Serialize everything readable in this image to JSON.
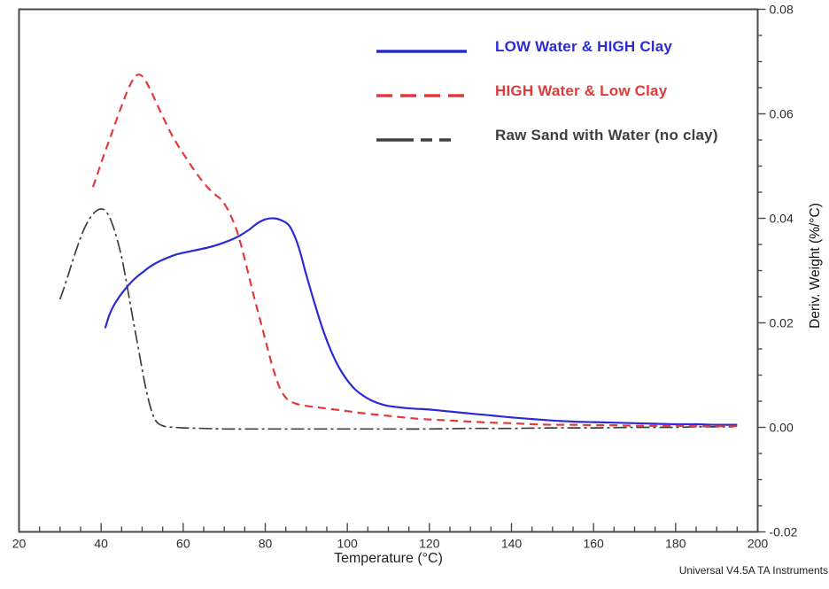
{
  "credit": "Universal V4.5A TA Instruments",
  "colors": {
    "background": "#ffffff",
    "axis": "#4a4a4a",
    "tick_label": "#2d2d2d",
    "series_blue": "#2b2bd6",
    "series_red": "#e23a3a",
    "series_black": "#3f3f3f"
  },
  "chart_data": {
    "type": "line",
    "title": "",
    "xlabel": "Temperature (°C)",
    "ylabel": "Deriv. Weight (%/°C)",
    "xlim": [
      20,
      200
    ],
    "ylim": [
      -0.02,
      0.08
    ],
    "grid": false,
    "legend_position": "top-center",
    "x_ticks": {
      "values": [
        20,
        40,
        60,
        80,
        100,
        120,
        140,
        160,
        180,
        200
      ],
      "minor_step": 5
    },
    "y_ticks": {
      "values": [
        -0.02,
        0,
        0.02,
        0.04,
        0.06,
        0.08
      ],
      "labels": [
        "-0.02",
        "0.00",
        "0.02",
        "0.04",
        "0.06",
        "0.08"
      ],
      "minor_step": 0.005
    },
    "series": [
      {
        "name": "LOW Water & HIGH Clay",
        "color": "#2b2bd6",
        "style": "solid",
        "points": [
          [
            41,
            0.019
          ],
          [
            42,
            0.0215
          ],
          [
            43,
            0.0232
          ],
          [
            44,
            0.0245
          ],
          [
            45,
            0.0256
          ],
          [
            46,
            0.0266
          ],
          [
            47,
            0.0275
          ],
          [
            48,
            0.0283
          ],
          [
            49,
            0.029
          ],
          [
            50,
            0.0296
          ],
          [
            52,
            0.0308
          ],
          [
            54,
            0.0317
          ],
          [
            56,
            0.0324
          ],
          [
            58,
            0.033
          ],
          [
            60,
            0.0334
          ],
          [
            63,
            0.0339
          ],
          [
            66,
            0.0344
          ],
          [
            69,
            0.0351
          ],
          [
            72,
            0.036
          ],
          [
            74,
            0.0368
          ],
          [
            76,
            0.0378
          ],
          [
            78,
            0.039
          ],
          [
            80,
            0.0398
          ],
          [
            82,
            0.04
          ],
          [
            84,
            0.0396
          ],
          [
            86,
            0.0384
          ],
          [
            88,
            0.0348
          ],
          [
            90,
            0.0292
          ],
          [
            92,
            0.0238
          ],
          [
            94,
            0.0188
          ],
          [
            96,
            0.0147
          ],
          [
            98,
            0.0114
          ],
          [
            100,
            0.009
          ],
          [
            102,
            0.0072
          ],
          [
            104,
            0.006
          ],
          [
            106,
            0.0051
          ],
          [
            108,
            0.0045
          ],
          [
            110,
            0.0041
          ],
          [
            113,
            0.0038
          ],
          [
            116,
            0.0036
          ],
          [
            120,
            0.0034
          ],
          [
            124,
            0.0031
          ],
          [
            128,
            0.0028
          ],
          [
            132,
            0.0025
          ],
          [
            136,
            0.0022
          ],
          [
            140,
            0.0019
          ],
          [
            145,
            0.0016
          ],
          [
            150,
            0.0013
          ],
          [
            155,
            0.0011
          ],
          [
            160,
            0.001
          ],
          [
            165,
            0.0009
          ],
          [
            170,
            0.0008
          ],
          [
            175,
            0.0007
          ],
          [
            180,
            0.0006
          ],
          [
            185,
            0.0006
          ],
          [
            190,
            0.0005
          ],
          [
            195,
            0.0005
          ]
        ]
      },
      {
        "name": "HIGH Water & Low Clay",
        "color": "#e23a3a",
        "style": "dashed",
        "points": [
          [
            38,
            0.046
          ],
          [
            39,
            0.0482
          ],
          [
            40,
            0.0506
          ],
          [
            41,
            0.0528
          ],
          [
            42,
            0.055
          ],
          [
            43,
            0.0572
          ],
          [
            44,
            0.0594
          ],
          [
            45,
            0.0615
          ],
          [
            46,
            0.0636
          ],
          [
            47,
            0.0654
          ],
          [
            48,
            0.0668
          ],
          [
            49,
            0.0675
          ],
          [
            50,
            0.0672
          ],
          [
            51,
            0.0661
          ],
          [
            52,
            0.0646
          ],
          [
            53,
            0.0629
          ],
          [
            54,
            0.0612
          ],
          [
            55,
            0.0595
          ],
          [
            56,
            0.0579
          ],
          [
            57,
            0.0563
          ],
          [
            58,
            0.0549
          ],
          [
            59,
            0.0536
          ],
          [
            60,
            0.0524
          ],
          [
            61,
            0.0512
          ],
          [
            62,
            0.05
          ],
          [
            63,
            0.0489
          ],
          [
            64,
            0.0478
          ],
          [
            65,
            0.0468
          ],
          [
            66,
            0.0459
          ],
          [
            67,
            0.0451
          ],
          [
            68,
            0.0444
          ],
          [
            69,
            0.0438
          ],
          [
            70,
            0.0428
          ],
          [
            71,
            0.0415
          ],
          [
            72,
            0.0398
          ],
          [
            73,
            0.0378
          ],
          [
            74,
            0.0352
          ],
          [
            75,
            0.0322
          ],
          [
            76,
            0.029
          ],
          [
            77,
            0.0258
          ],
          [
            78,
            0.0228
          ],
          [
            79,
            0.0198
          ],
          [
            80,
            0.0168
          ],
          [
            81,
            0.0138
          ],
          [
            82,
            0.011
          ],
          [
            83,
            0.0086
          ],
          [
            84,
            0.0068
          ],
          [
            85,
            0.0057
          ],
          [
            86,
            0.005
          ],
          [
            88,
            0.0044
          ],
          [
            90,
            0.0041
          ],
          [
            92,
            0.0039
          ],
          [
            95,
            0.0036
          ],
          [
            100,
            0.0031
          ],
          [
            105,
            0.0026
          ],
          [
            110,
            0.0022
          ],
          [
            115,
            0.0018
          ],
          [
            120,
            0.0015
          ],
          [
            125,
            0.0013
          ],
          [
            130,
            0.0011
          ],
          [
            135,
            0.0009
          ],
          [
            140,
            0.0008
          ],
          [
            145,
            0.0006
          ],
          [
            150,
            0.0005
          ],
          [
            155,
            0.0005
          ],
          [
            160,
            0.0004
          ],
          [
            165,
            0.0004
          ],
          [
            170,
            0.0003
          ],
          [
            175,
            0.0003
          ],
          [
            180,
            0.0003
          ],
          [
            185,
            0.0002
          ],
          [
            190,
            0.0002
          ],
          [
            196,
            0.0002
          ]
        ]
      },
      {
        "name": "Raw Sand with Water (no clay)",
        "color": "#3f3f3f",
        "style": "dash-dot",
        "points": [
          [
            30,
            0.0245
          ],
          [
            31,
            0.0268
          ],
          [
            32,
            0.0292
          ],
          [
            33,
            0.0317
          ],
          [
            34,
            0.0341
          ],
          [
            35,
            0.0363
          ],
          [
            36,
            0.0382
          ],
          [
            37,
            0.0397
          ],
          [
            38,
            0.0408
          ],
          [
            39,
            0.0415
          ],
          [
            40,
            0.0418
          ],
          [
            41,
            0.0415
          ],
          [
            42,
            0.0403
          ],
          [
            43,
            0.0383
          ],
          [
            44,
            0.0357
          ],
          [
            45,
            0.0326
          ],
          [
            46,
            0.0285
          ],
          [
            47,
            0.0241
          ],
          [
            48,
            0.0197
          ],
          [
            49,
            0.0154
          ],
          [
            50,
            0.0111
          ],
          [
            51,
            0.0071
          ],
          [
            52,
            0.0039
          ],
          [
            53,
            0.0017
          ],
          [
            54,
            0.0007
          ],
          [
            55,
            0.0003
          ],
          [
            56,
            0.0001
          ],
          [
            58,
            0
          ],
          [
            60,
            -0.0001
          ],
          [
            65,
            -0.0002
          ],
          [
            70,
            -0.0003
          ],
          [
            80,
            -0.0003
          ],
          [
            90,
            -0.0003
          ],
          [
            100,
            -0.0003
          ],
          [
            110,
            -0.0003
          ],
          [
            120,
            -0.0003
          ],
          [
            130,
            -0.0002
          ],
          [
            140,
            -0.0002
          ],
          [
            150,
            -0.0001
          ],
          [
            160,
            -0.0001
          ],
          [
            170,
            0
          ],
          [
            180,
            0
          ],
          [
            185,
            0.0001
          ],
          [
            194,
            0.0001
          ]
        ]
      }
    ]
  }
}
